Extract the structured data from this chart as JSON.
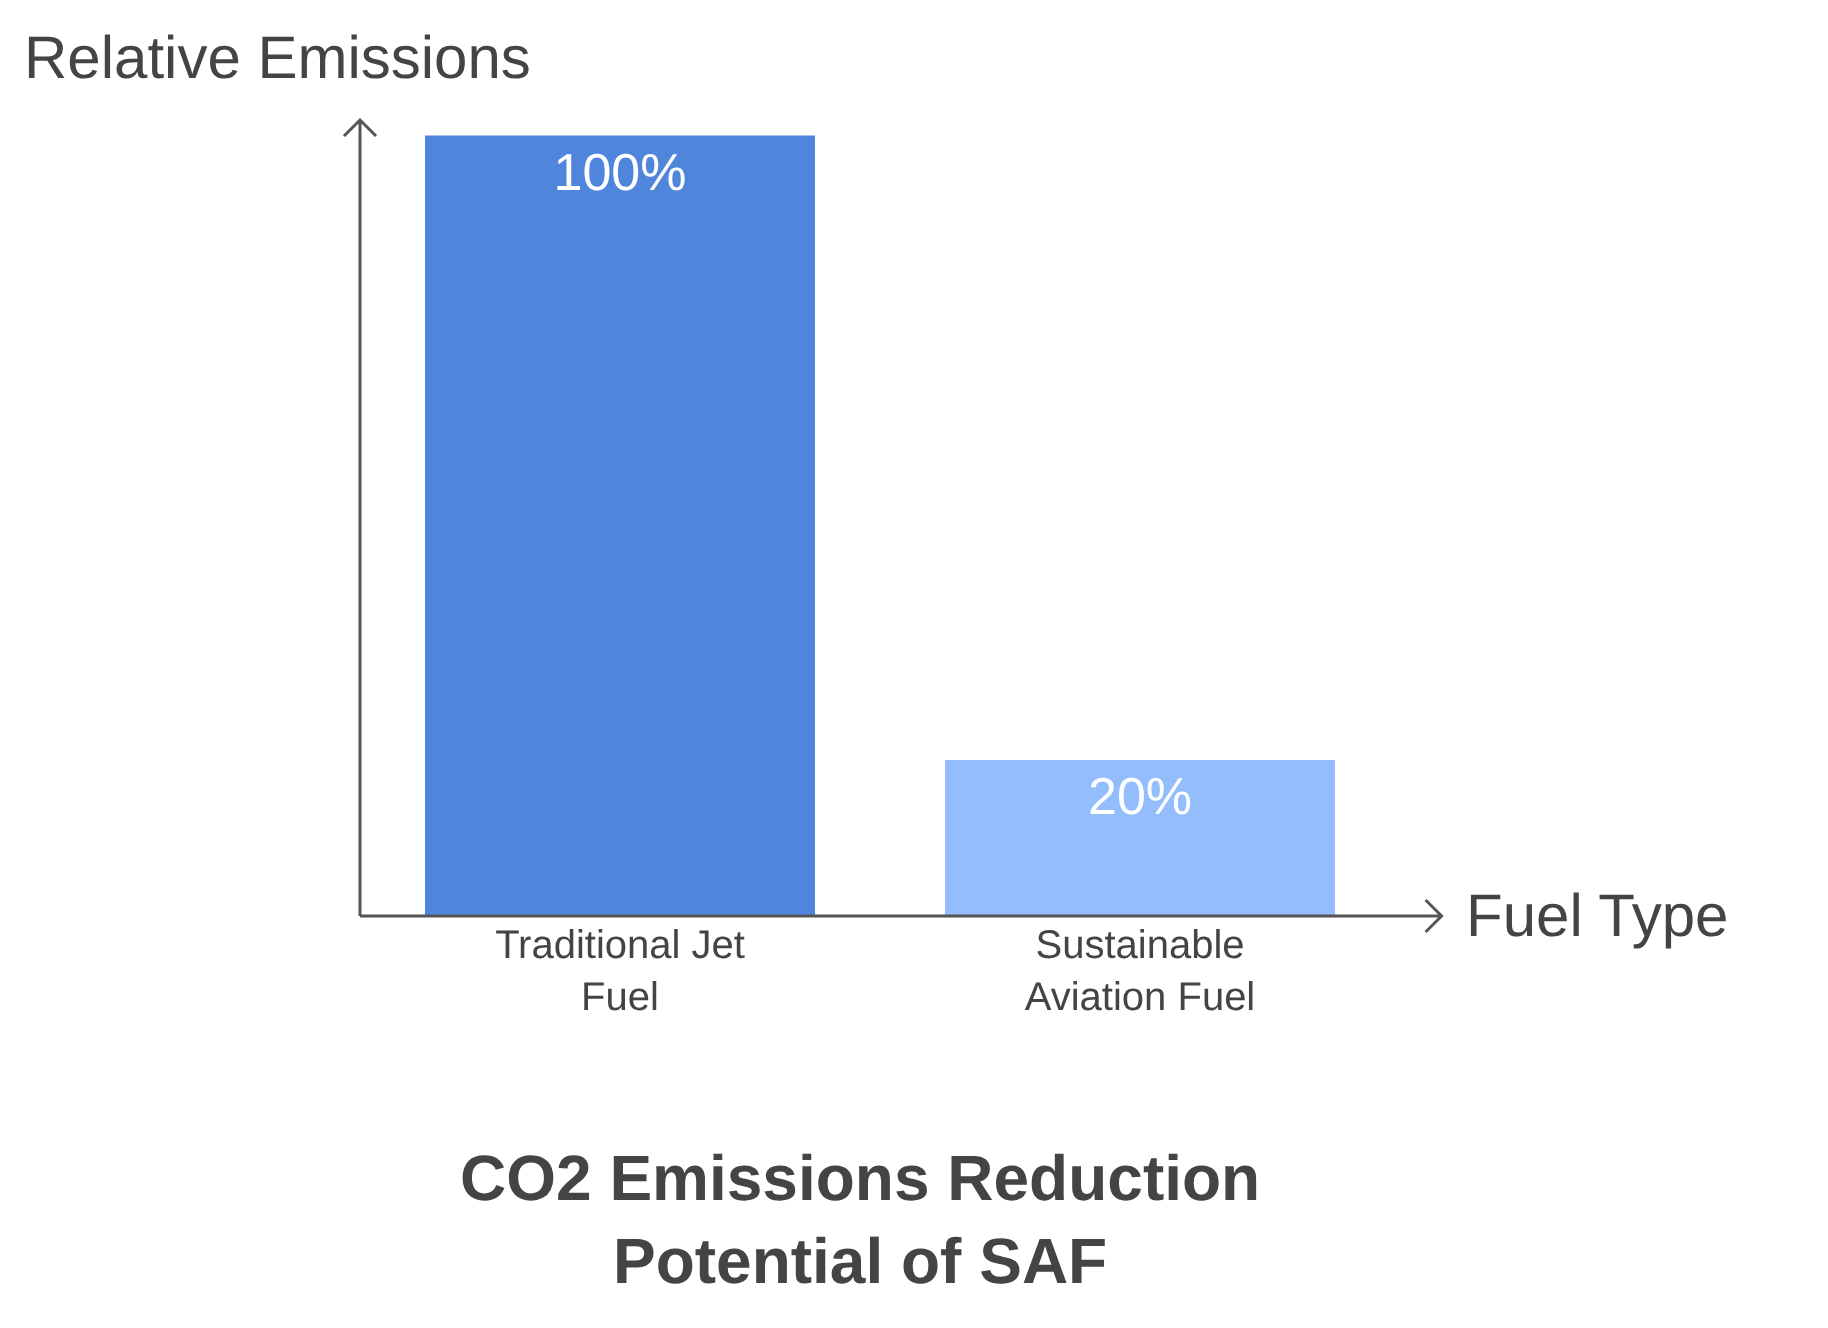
{
  "chart_data": {
    "type": "bar",
    "title": "CO2 Emissions Reduction Potential of SAF",
    "xlabel": "Fuel Type",
    "ylabel": "Relative Emissions",
    "categories": [
      "Traditional Jet Fuel",
      "Sustainable Aviation Fuel"
    ],
    "values": [
      100,
      20
    ],
    "colors": [
      "#4f86db",
      "#93bdfc"
    ],
    "value_labels": [
      "100%",
      "20%"
    ]
  }
}
